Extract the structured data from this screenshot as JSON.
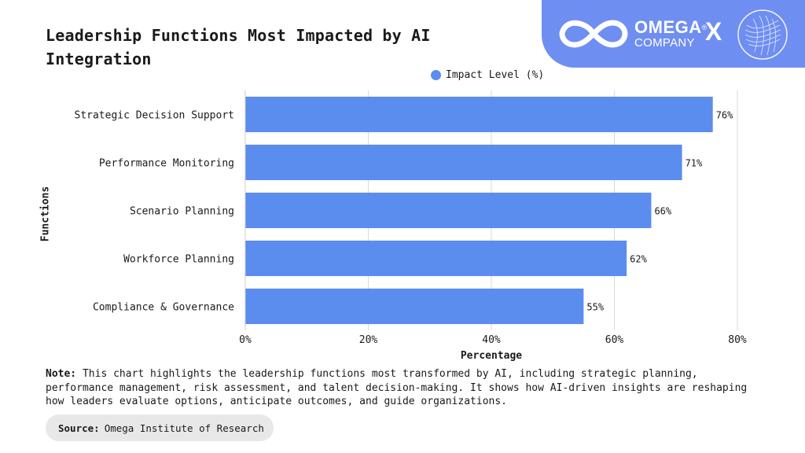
{
  "title": "Leadership Functions Most Impacted by AI Integration",
  "brand": {
    "name": "OMEGA",
    "mark": "®",
    "sub": "COMPANY",
    "x": "X",
    "accent": "#6f8ef2"
  },
  "chart_data": {
    "type": "bar",
    "orientation": "horizontal",
    "categories": [
      "Strategic Decision Support",
      "Performance Monitoring",
      "Scenario Planning",
      "Workforce Planning",
      "Compliance & Governance"
    ],
    "series": [
      {
        "name": "Impact Level (%)",
        "values": [
          76,
          71,
          66,
          62,
          55
        ],
        "color": "#5b8def"
      }
    ],
    "value_labels": [
      "76%",
      "71%",
      "66%",
      "62%",
      "55%"
    ],
    "xlabel": "Percentage",
    "ylabel": "Functions",
    "xlim": [
      0,
      80
    ],
    "xticks": [
      "0%",
      "20%",
      "40%",
      "60%",
      "80%"
    ],
    "grid": "vertical",
    "legend": "top-center"
  },
  "note": {
    "label": "Note:",
    "text": "This chart highlights the leadership functions most transformed by AI, including strategic planning, performance management, risk assessment, and talent decision-making. It shows how AI-driven insights are reshaping how leaders evaluate options, anticipate outcomes, and guide organizations."
  },
  "source": {
    "label": "Source:",
    "text": "Omega Institute of Research"
  }
}
